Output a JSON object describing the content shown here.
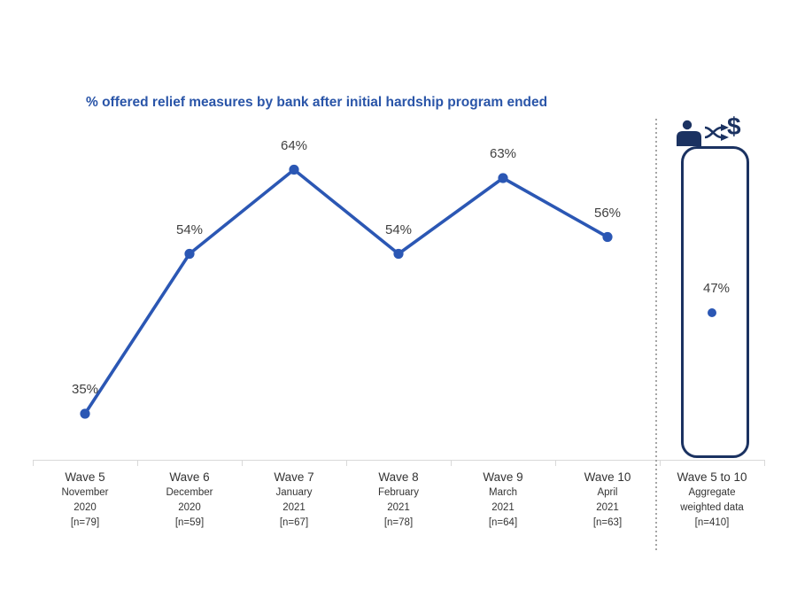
{
  "colors": {
    "title": "#2A55A8",
    "line": "#2B57B4",
    "data_label": "#404040",
    "category_label": "#333333",
    "axis": "#D9D9D9",
    "navy": "#1B3261",
    "separator": "#A6A6A6"
  },
  "icons": {
    "dollar_glyph": "$",
    "names": [
      "person-icon",
      "exchange-arrows-icon",
      "dollar-icon"
    ]
  },
  "chart_data": {
    "type": "line",
    "title": "% offered relief measures by bank after initial hardship program ended",
    "value_suffix": "%",
    "categories": [
      "Wave 5",
      "Wave 6",
      "Wave 7",
      "Wave 8",
      "Wave 9",
      "Wave 10"
    ],
    "category_details": [
      [
        "November",
        "2020",
        "[n=79]"
      ],
      [
        "December",
        "2020",
        "[n=59]"
      ],
      [
        "January",
        "2021",
        "[n=67]"
      ],
      [
        "February",
        "2021",
        "[n=78]"
      ],
      [
        "March",
        "2021",
        "[n=64]"
      ],
      [
        "April",
        "2021",
        "[n=63]"
      ]
    ],
    "values": [
      35,
      54,
      64,
      54,
      63,
      56
    ],
    "aggregate": {
      "category": "Wave 5 to 10",
      "details": [
        "Aggregate",
        "weighted data",
        "[n=410]"
      ],
      "value": 47
    },
    "xlabel": "",
    "ylabel": "",
    "y_axis_visible": false,
    "grid": false,
    "legend": "none"
  }
}
